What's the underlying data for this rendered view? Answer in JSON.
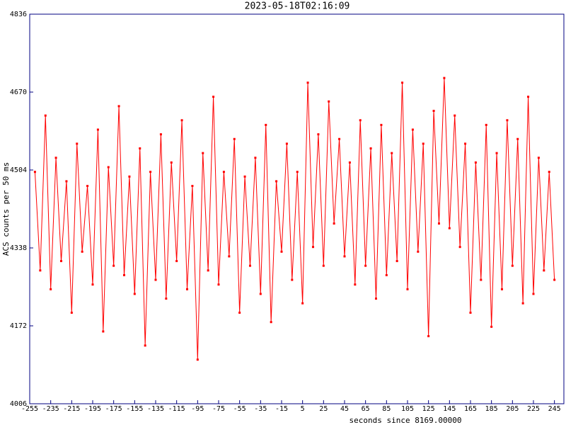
{
  "chart_data": {
    "type": "line",
    "title": "2023-05-18T02:16:09",
    "y_label": "ACS counts per 50 ms",
    "x_label": "seconds since 8169.00000",
    "color": "#ff0000",
    "frame_color": "#000080",
    "xlim": [
      -255,
      254
    ],
    "xticks": [
      -255,
      -235,
      -215,
      -195,
      -175,
      -155,
      -135,
      -115,
      -95,
      -75,
      -55,
      -35,
      -15,
      5,
      25,
      45,
      65,
      85,
      105,
      125,
      145,
      165,
      185,
      205,
      225,
      245
    ],
    "ylim": [
      4006,
      4836
    ],
    "yticks": [
      4006,
      4172,
      4338,
      4504,
      4670,
      4836
    ],
    "x": [
      -250,
      -245,
      -240,
      -235,
      -230,
      -225,
      -220,
      -215,
      -210,
      -205,
      -200,
      -195,
      -190,
      -185,
      -180,
      -175,
      -170,
      -165,
      -160,
      -155,
      -150,
      -145,
      -140,
      -135,
      -130,
      -125,
      -120,
      -115,
      -110,
      -105,
      -100,
      -95,
      -90,
      -85,
      -80,
      -75,
      -70,
      -65,
      -60,
      -55,
      -50,
      -45,
      -40,
      -35,
      -30,
      -25,
      -20,
      -15,
      -10,
      -5,
      0,
      5,
      10,
      15,
      20,
      25,
      30,
      35,
      40,
      45,
      50,
      55,
      60,
      65,
      70,
      75,
      80,
      85,
      90,
      95,
      100,
      105,
      110,
      115,
      120,
      125,
      130,
      135,
      140,
      145,
      150,
      155,
      160,
      165,
      170,
      175,
      180,
      185,
      190,
      195,
      200,
      205,
      210,
      215,
      220,
      225,
      230,
      235,
      240,
      245
    ],
    "values": [
      4500,
      4290,
      4620,
      4250,
      4530,
      4310,
      4480,
      4200,
      4560,
      4330,
      4470,
      4260,
      4590,
      4160,
      4510,
      4300,
      4640,
      4280,
      4490,
      4240,
      4550,
      4130,
      4500,
      4270,
      4580,
      4230,
      4520,
      4310,
      4610,
      4250,
      4470,
      4100,
      4540,
      4290,
      4660,
      4260,
      4500,
      4320,
      4570,
      4200,
      4490,
      4300,
      4530,
      4240,
      4600,
      4180,
      4480,
      4330,
      4560,
      4270,
      4500,
      4220,
      4690,
      4340,
      4580,
      4300,
      4650,
      4390,
      4570,
      4320,
      4520,
      4260,
      4610,
      4300,
      4550,
      4230,
      4600,
      4280,
      4540,
      4310,
      4690,
      4250,
      4590,
      4330,
      4560,
      4150,
      4630,
      4390,
      4700,
      4380,
      4620,
      4340,
      4560,
      4200,
      4520,
      4270,
      4600,
      4170,
      4540,
      4250,
      4610,
      4300,
      4570,
      4220,
      4660,
      4240,
      4530,
      4290,
      4500,
      4270
    ]
  }
}
